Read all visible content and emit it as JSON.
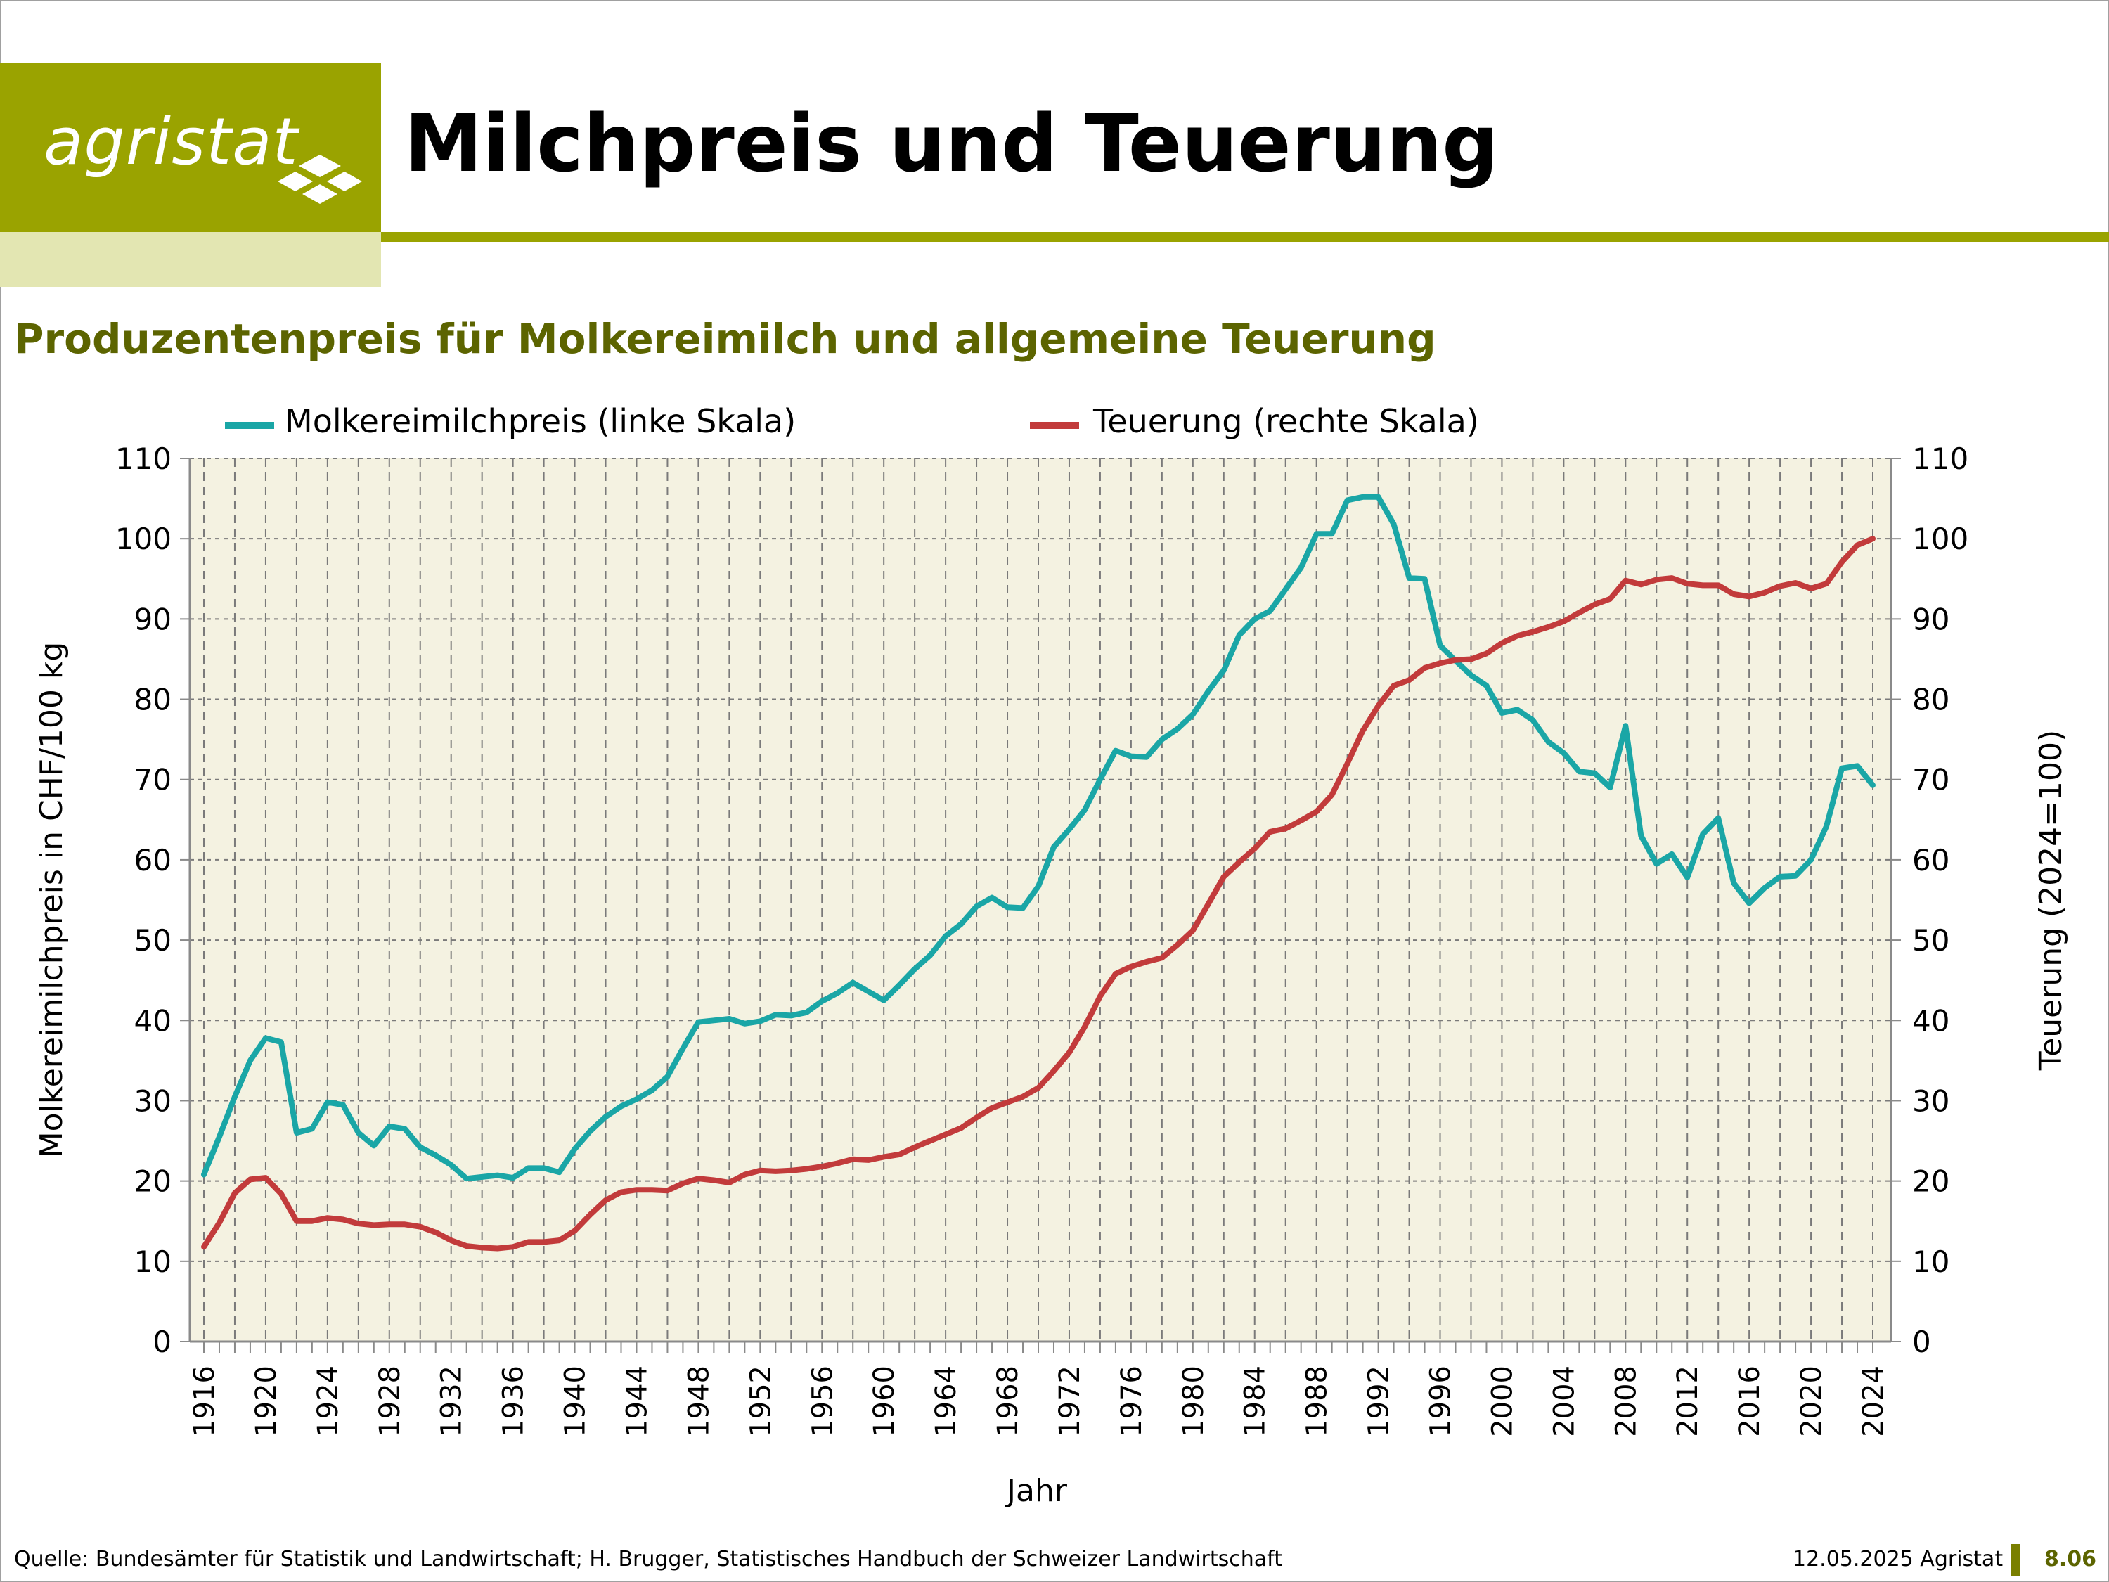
{
  "header": {
    "logo_text": "agristat",
    "title": "Milchpreis und Teuerung",
    "subtitle": "Produzentenpreis für Molkereimilch und allgemeine Teuerung"
  },
  "footer": {
    "source": "Quelle: Bundesämter für Statistik und Landwirtschaft; H. Brugger, Statistisches Handbuch der Schweizer Landwirtschaft",
    "date": "12.05.2025 Agristat",
    "number": "8.06"
  },
  "colors": {
    "brand": "#9aa300",
    "brand_pale": "#e3e6b2",
    "subtitle": "#5c6400",
    "plot_bg": "#f4f2e1",
    "milk": "#1aa6a6",
    "inflation": "#c23b3b"
  },
  "chart_data": {
    "type": "line",
    "xlabel": "Jahr",
    "ylabel": "Molkereimilchpreis in CHF/100 kg",
    "ylabel_right": "Teuerung (2024=100)",
    "xlim": [
      1916,
      2024
    ],
    "ylim": [
      0,
      110
    ],
    "ylim_right": [
      0,
      110
    ],
    "x_ticks": [
      1916,
      1920,
      1924,
      1928,
      1932,
      1936,
      1940,
      1944,
      1948,
      1952,
      1956,
      1960,
      1964,
      1968,
      1972,
      1976,
      1980,
      1984,
      1988,
      1992,
      1996,
      2000,
      2004,
      2008,
      2012,
      2016,
      2020,
      2024
    ],
    "y_ticks": [
      0,
      10,
      20,
      30,
      40,
      50,
      60,
      70,
      80,
      90,
      100,
      110
    ],
    "grid": true,
    "legend_position": "top",
    "series": [
      {
        "name": "Molkereimilchpreis (linke Skala)",
        "axis": "left",
        "color": "#1aa6a6",
        "x": [
          1916,
          1917,
          1918,
          1919,
          1920,
          1921,
          1922,
          1923,
          1924,
          1925,
          1926,
          1927,
          1928,
          1929,
          1930,
          1931,
          1932,
          1933,
          1934,
          1935,
          1936,
          1937,
          1938,
          1939,
          1940,
          1941,
          1942,
          1943,
          1944,
          1945,
          1946,
          1947,
          1948,
          1949,
          1950,
          1951,
          1952,
          1953,
          1954,
          1955,
          1956,
          1957,
          1958,
          1959,
          1960,
          1961,
          1962,
          1963,
          1964,
          1965,
          1966,
          1967,
          1968,
          1969,
          1970,
          1971,
          1972,
          1973,
          1974,
          1975,
          1976,
          1977,
          1978,
          1979,
          1980,
          1981,
          1982,
          1983,
          1984,
          1985,
          1986,
          1987,
          1988,
          1989,
          1990,
          1991,
          1992,
          1993,
          1994,
          1995,
          1996,
          1997,
          1998,
          1999,
          2000,
          2001,
          2002,
          2003,
          2004,
          2005,
          2006,
          2007,
          2008,
          2009,
          2010,
          2011,
          2012,
          2013,
          2014,
          2015,
          2016,
          2017,
          2018,
          2019,
          2020,
          2021,
          2022,
          2023,
          2024
        ],
        "values": [
          20.8,
          25.5,
          30.5,
          35,
          37.8,
          37.3,
          26,
          26.5,
          29.8,
          29.5,
          26,
          24.4,
          26.8,
          26.5,
          24.2,
          23.2,
          22,
          20.3,
          20.5,
          20.7,
          20.4,
          21.6,
          21.6,
          21.1,
          24,
          26.2,
          28,
          29.3,
          30.2,
          31.3,
          33,
          36.5,
          39.8,
          40,
          40.2,
          39.6,
          39.9,
          40.7,
          40.6,
          41,
          42.4,
          43.4,
          44.7,
          43.6,
          42.5,
          44.4,
          46.4,
          48.1,
          50.5,
          52,
          54.2,
          55.3,
          54.1,
          54,
          56.7,
          61.6,
          63.8,
          66.2,
          70,
          73.6,
          72.9,
          72.8,
          75,
          76.3,
          78.1,
          81,
          83.6,
          88,
          90,
          91,
          93.7,
          96.4,
          100.6,
          100.6,
          104.8,
          105.2,
          105.2,
          101.8,
          95.1,
          95,
          86.7,
          84.8,
          83,
          81.7,
          78.3,
          78.7,
          77.4,
          74.7,
          73.3,
          71,
          70.8,
          69,
          76.7,
          63,
          59.5,
          60.7,
          57.8,
          63.2,
          65.2,
          57.1,
          54.6,
          56.5,
          57.9,
          58,
          60,
          64.2,
          71.4,
          71.7,
          69.3
        ]
      },
      {
        "name": "Teuerung (rechte Skala)",
        "axis": "right",
        "color": "#c23b3b",
        "x": [
          1916,
          1917,
          1918,
          1919,
          1920,
          1921,
          1922,
          1923,
          1924,
          1925,
          1926,
          1927,
          1928,
          1929,
          1930,
          1931,
          1932,
          1933,
          1934,
          1935,
          1936,
          1937,
          1938,
          1939,
          1940,
          1941,
          1942,
          1943,
          1944,
          1945,
          1946,
          1947,
          1948,
          1949,
          1950,
          1951,
          1952,
          1953,
          1954,
          1955,
          1956,
          1957,
          1958,
          1959,
          1960,
          1961,
          1962,
          1963,
          1964,
          1965,
          1966,
          1967,
          1968,
          1969,
          1970,
          1971,
          1972,
          1973,
          1974,
          1975,
          1976,
          1977,
          1978,
          1979,
          1980,
          1981,
          1982,
          1983,
          1984,
          1985,
          1986,
          1987,
          1988,
          1989,
          1990,
          1991,
          1992,
          1993,
          1994,
          1995,
          1996,
          1997,
          1998,
          1999,
          2000,
          2001,
          2002,
          2003,
          2004,
          2005,
          2006,
          2007,
          2008,
          2009,
          2010,
          2011,
          2012,
          2013,
          2014,
          2015,
          2016,
          2017,
          2018,
          2019,
          2020,
          2021,
          2022,
          2023,
          2024
        ],
        "values": [
          11.8,
          14.8,
          18.5,
          20.2,
          20.4,
          18.4,
          15,
          15,
          15.4,
          15.2,
          14.7,
          14.5,
          14.6,
          14.6,
          14.3,
          13.6,
          12.6,
          11.9,
          11.7,
          11.6,
          11.8,
          12.4,
          12.4,
          12.6,
          13.8,
          15.8,
          17.6,
          18.6,
          18.9,
          18.9,
          18.8,
          19.7,
          20.3,
          20.1,
          19.8,
          20.8,
          21.3,
          21.2,
          21.3,
          21.5,
          21.8,
          22.2,
          22.7,
          22.6,
          23,
          23.3,
          24.2,
          25,
          25.8,
          26.6,
          27.9,
          29.1,
          29.8,
          30.5,
          31.6,
          33.7,
          36,
          39.2,
          43,
          45.8,
          46.7,
          47.3,
          47.8,
          49.4,
          51.2,
          54.5,
          57.9,
          59.7,
          61.4,
          63.5,
          63.9,
          64.9,
          66,
          68.1,
          72,
          76.1,
          79.2,
          81.7,
          82.4,
          83.9,
          84.5,
          84.9,
          85,
          85.7,
          87,
          87.9,
          88.4,
          89,
          89.7,
          90.8,
          91.8,
          92.5,
          94.8,
          94.3,
          94.9,
          95.1,
          94.4,
          94.2,
          94.2,
          93.1,
          92.8,
          93.3,
          94.1,
          94.5,
          93.8,
          94.4,
          97.1,
          99.2,
          100
        ]
      }
    ]
  }
}
